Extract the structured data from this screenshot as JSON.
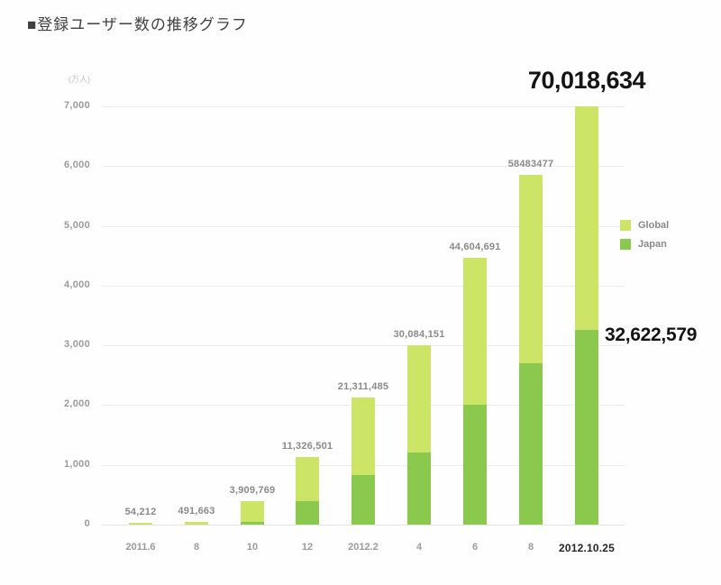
{
  "page": {
    "title": "■登録ユーザー数の推移グラフ"
  },
  "chart_data": {
    "type": "bar",
    "stacked": true,
    "title": "登録ユーザー数の推移グラフ",
    "y_axis": {
      "unit_label": "(万人)",
      "range": [
        0,
        7000
      ],
      "ticks": [
        0,
        1000,
        2000,
        3000,
        4000,
        5000,
        6000,
        7000
      ],
      "tick_labels": [
        "0",
        "1,000",
        "2,000",
        "3,000",
        "4,000",
        "5,000",
        "6,000",
        "7,000"
      ],
      "grid": true
    },
    "categories": [
      "2011.6",
      "8",
      "10",
      "12",
      "2012.2",
      "4",
      "6",
      "8",
      "2012.10.25"
    ],
    "legend": {
      "position": "right",
      "entries": [
        {
          "label": "Global",
          "color": "#cde566"
        },
        {
          "label": "Japan",
          "color": "#8bc84e"
        }
      ]
    },
    "colors": {
      "global": "#cde566",
      "japan": "#8bc84e"
    },
    "bars": [
      {
        "category": "2011.6",
        "total_persons": 54212,
        "total_label": "54,212",
        "total_10k": 5.4,
        "japan_10k_est": 1
      },
      {
        "category": "8",
        "total_persons": 491663,
        "total_label": "491,663",
        "total_10k": 49.2,
        "japan_10k_est": 8
      },
      {
        "category": "10",
        "total_persons": 3909769,
        "total_label": "3,909,769",
        "total_10k": 391.0,
        "japan_10k_est": 40
      },
      {
        "category": "12",
        "total_persons": 11326501,
        "total_label": "11,326,501",
        "total_10k": 1132.7,
        "japan_10k_est": 390
      },
      {
        "category": "2012.2",
        "total_persons": 21311485,
        "total_label": "21,311,485",
        "total_10k": 2131.1,
        "japan_10k_est": 830
      },
      {
        "category": "4",
        "total_persons": 30084151,
        "total_label": "30,084,151",
        "total_10k": 3008.4,
        "japan_10k_est": 1210
      },
      {
        "category": "6",
        "total_persons": 44604691,
        "total_label": "44,604,691",
        "total_10k": 4460.5,
        "japan_10k_est": 2000
      },
      {
        "category": "8",
        "total_persons": 58483477,
        "total_label": "58483477",
        "total_10k": 5848.3,
        "japan_10k_est": 2700
      },
      {
        "category": "2012.10.25",
        "total_persons": 70018634,
        "total_label": "70,018,634",
        "total_10k": 7001.9,
        "japan_10k_est": 3262.3,
        "japan_persons": 32622579,
        "japan_label": "32,622,579",
        "emphasis": true
      }
    ]
  }
}
